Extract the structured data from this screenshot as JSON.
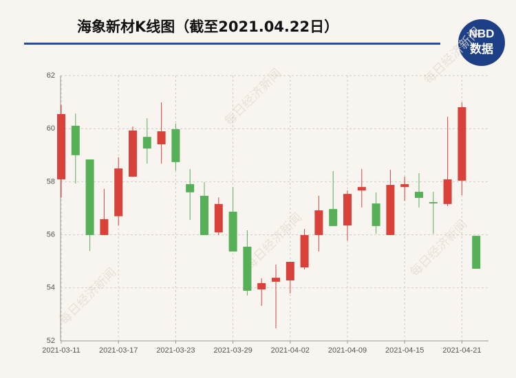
{
  "chart_data": {
    "type": "candlestick",
    "title": "海象新材K线图（截至2021.04.22日）",
    "logo": {
      "line1": "NBD",
      "line2": "数据"
    },
    "watermark": "每日经济新闻",
    "categories": [
      "2021-03-11",
      null,
      null,
      null,
      "2021-03-17",
      null,
      null,
      null,
      "2021-03-23",
      null,
      null,
      null,
      "2021-03-29",
      null,
      null,
      null,
      "2021-04-02",
      null,
      null,
      null,
      "2021-04-09",
      null,
      null,
      null,
      "2021-04-15",
      null,
      null,
      null,
      "2021-04-21",
      null
    ],
    "open": [
      58.09,
      60.11,
      58.84,
      55.99,
      56.7,
      58.19,
      59.69,
      59.41,
      59.98,
      57.91,
      57.47,
      56.09,
      56.87,
      55.55,
      53.94,
      54.23,
      54.28,
      54.77,
      55.99,
      56.97,
      56.35,
      57.67,
      57.18,
      55.99,
      57.8,
      57.62,
      57.23,
      57.16,
      58.04,
      55.96
    ],
    "close": [
      60.55,
      59.0,
      55.99,
      56.59,
      58.5,
      59.93,
      59.25,
      59.9,
      58.74,
      57.6,
      55.99,
      57.16,
      55.37,
      53.89,
      54.18,
      54.38,
      54.98,
      55.99,
      56.92,
      56.33,
      57.54,
      57.8,
      56.33,
      57.88,
      57.91,
      57.39,
      57.18,
      58.09,
      60.81,
      54.72
    ],
    "high": [
      60.9,
      60.57,
      58.84,
      57.73,
      58.92,
      60.08,
      60.39,
      60.99,
      60.19,
      58.48,
      57.98,
      57.41,
      57.8,
      56.17,
      54.36,
      54.88,
      54.98,
      56.22,
      57.47,
      58.4,
      57.67,
      58.48,
      57.6,
      58.45,
      58.19,
      58.32,
      57.62,
      60.45,
      60.99,
      55.96
    ],
    "low": [
      57.4,
      57.93,
      55.39,
      55.99,
      56.35,
      58.19,
      58.68,
      58.68,
      58.42,
      56.56,
      55.99,
      55.99,
      55.37,
      53.71,
      53.32,
      52.47,
      53.79,
      54.69,
      55.37,
      56.33,
      55.78,
      57.03,
      56.04,
      55.99,
      57.28,
      57.03,
      56.04,
      57.08,
      57.49,
      54.72
    ],
    "up_color": "#d9423a",
    "down_color": "#55b057",
    "ylim": [
      52,
      62
    ],
    "yticks": [
      52,
      54,
      56,
      58,
      60,
      62
    ],
    "grid": true
  }
}
